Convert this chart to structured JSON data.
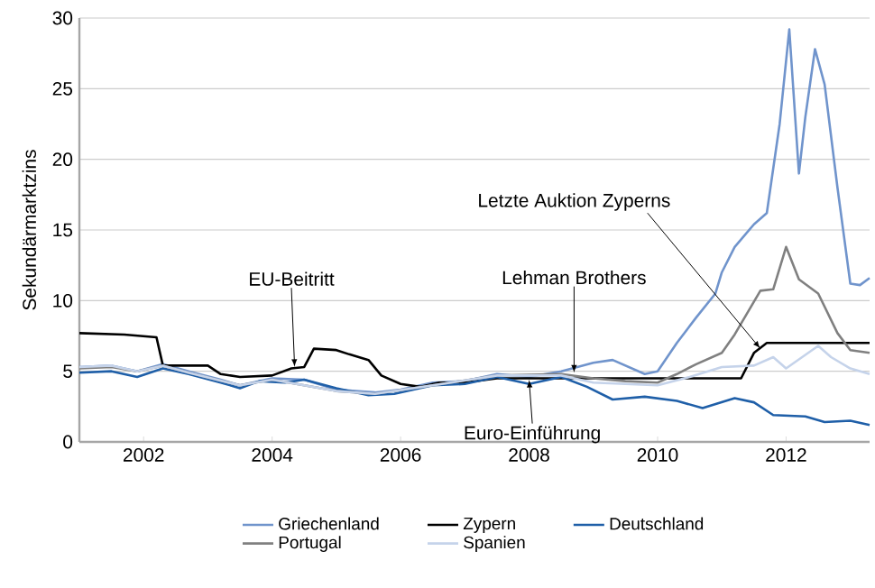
{
  "chart_data": {
    "type": "line",
    "ylabel": "Sekundärmarktzins",
    "xlim": [
      2001,
      2013.3
    ],
    "ylim": [
      0,
      30
    ],
    "xticks": [
      2002,
      2004,
      2006,
      2008,
      2010,
      2012
    ],
    "yticks": [
      0,
      5,
      10,
      15,
      20,
      25,
      30
    ],
    "grid": "y",
    "legend": "bottom",
    "marker": "none",
    "line_style": "solid",
    "series": [
      {
        "name": "Griechenland",
        "color": "#7094cc",
        "x": [
          2001,
          2001.5,
          2001.9,
          2002.3,
          2002.7,
          2003.2,
          2003.5,
          2004.0,
          2004.5,
          2005.0,
          2005.6,
          2006.0,
          2006.5,
          2007.0,
          2007.5,
          2008.0,
          2008.5,
          2009.0,
          2009.3,
          2009.8,
          2010.0,
          2010.3,
          2010.6,
          2010.9,
          2011.0,
          2011.2,
          2011.5,
          2011.7,
          2011.9,
          2012.05,
          2012.2,
          2012.3,
          2012.45,
          2012.6,
          2012.8,
          2013.0,
          2013.15,
          2013.3
        ],
        "values": [
          5.3,
          5.4,
          5.0,
          5.5,
          5.0,
          4.4,
          4.0,
          4.5,
          4.4,
          3.7,
          3.5,
          3.7,
          4.2,
          4.3,
          4.8,
          4.6,
          5.0,
          5.6,
          5.8,
          4.8,
          5.0,
          7.0,
          8.8,
          10.5,
          12.0,
          13.8,
          15.4,
          16.2,
          22.5,
          29.2,
          19.0,
          23.0,
          27.8,
          25.3,
          18.0,
          11.2,
          11.1,
          11.6
        ]
      },
      {
        "name": "Zypern",
        "color": "#000000",
        "x": [
          2001,
          2001.7,
          2002.2,
          2002.3,
          2003.0,
          2003.2,
          2003.5,
          2004.0,
          2004.3,
          2004.5,
          2004.65,
          2005.0,
          2005.2,
          2005.5,
          2005.7,
          2006.0,
          2006.3,
          2006.6,
          2007.0,
          2007.5,
          2008.0,
          2011.3,
          2011.5,
          2011.7,
          2013.3
        ],
        "values": [
          7.7,
          7.6,
          7.4,
          5.4,
          5.4,
          4.8,
          4.6,
          4.7,
          5.2,
          5.3,
          6.6,
          6.5,
          6.2,
          5.8,
          4.7,
          4.1,
          3.9,
          4.2,
          4.2,
          4.5,
          4.5,
          4.5,
          6.3,
          7.0,
          7.0
        ]
      },
      {
        "name": "Deutschland",
        "color": "#1f5fa8",
        "x": [
          2001,
          2001.5,
          2001.9,
          2002.3,
          2002.7,
          2003.2,
          2003.5,
          2003.8,
          2004.2,
          2004.5,
          2005.0,
          2005.5,
          2005.9,
          2006.5,
          2007.0,
          2007.5,
          2008.0,
          2008.5,
          2008.9,
          2009.3,
          2009.8,
          2010.3,
          2010.7,
          2011.2,
          2011.5,
          2011.8,
          2012.3,
          2012.6,
          2013.0,
          2013.3
        ],
        "values": [
          4.9,
          5.0,
          4.6,
          5.2,
          4.8,
          4.2,
          3.8,
          4.3,
          4.2,
          4.4,
          3.8,
          3.3,
          3.4,
          4.0,
          4.1,
          4.6,
          4.1,
          4.6,
          3.9,
          3.0,
          3.2,
          2.9,
          2.4,
          3.1,
          2.8,
          1.9,
          1.8,
          1.4,
          1.5,
          1.2
        ]
      },
      {
        "name": "Portugal",
        "color": "#808080",
        "x": [
          2001,
          2001.5,
          2001.9,
          2002.3,
          2002.7,
          2003.5,
          2004.0,
          2005.0,
          2005.6,
          2006.5,
          2007.5,
          2008.5,
          2009.0,
          2009.5,
          2010.0,
          2010.3,
          2010.6,
          2011.0,
          2011.2,
          2011.6,
          2011.8,
          2012.0,
          2012.2,
          2012.5,
          2012.8,
          2013.0,
          2013.3
        ],
        "values": [
          5.2,
          5.3,
          5.0,
          5.4,
          4.9,
          4.0,
          4.4,
          3.6,
          3.4,
          4.0,
          4.7,
          4.8,
          4.5,
          4.3,
          4.2,
          4.8,
          5.5,
          6.3,
          7.6,
          10.7,
          10.8,
          13.8,
          11.5,
          10.5,
          7.7,
          6.5,
          6.3
        ]
      },
      {
        "name": "Spanien",
        "color": "#c5d3ea",
        "x": [
          2001,
          2001.5,
          2001.9,
          2002.3,
          2002.7,
          2003.5,
          2004.0,
          2005.0,
          2005.6,
          2006.5,
          2007.5,
          2008.5,
          2009.0,
          2009.5,
          2010.0,
          2010.5,
          2011.0,
          2011.5,
          2011.8,
          2012.0,
          2012.5,
          2012.7,
          2013.0,
          2013.3
        ],
        "values": [
          5.3,
          5.4,
          5.0,
          5.4,
          4.9,
          4.0,
          4.4,
          3.6,
          3.4,
          4.0,
          4.7,
          4.7,
          4.2,
          4.1,
          4.0,
          4.6,
          5.3,
          5.4,
          6.0,
          5.2,
          6.8,
          6.0,
          5.2,
          4.8
        ]
      }
    ],
    "annotations": [
      {
        "text": "EU-Beitritt",
        "x": 2004.35,
        "y": 5.3
      },
      {
        "text": "Lehman Brothers",
        "x": 2008.7,
        "y": 4.9
      },
      {
        "text": "Letzte Auktion Zyperns",
        "x": 2011.6,
        "y": 6.6
      },
      {
        "text": "Euro-Einführung",
        "x": 2008.0,
        "y": 4.4
      }
    ]
  }
}
